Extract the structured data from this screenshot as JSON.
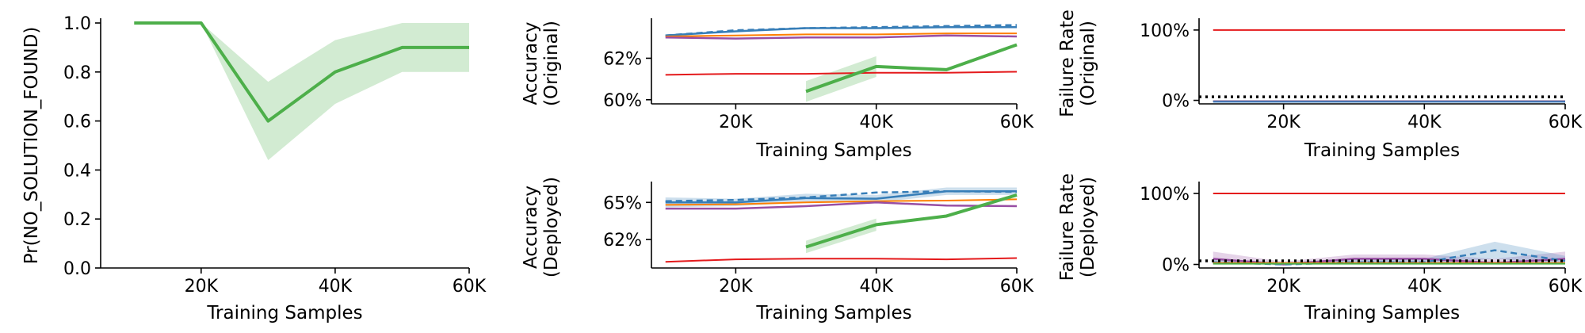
{
  "chart_data": [
    {
      "type": "line",
      "ylabel": "Pr(NO_SOLUTION_FOUND)",
      "xlabel": "Training Samples",
      "xlim": [
        5000,
        60000
      ],
      "ylim": [
        0,
        1.0
      ],
      "xticks": [
        20000,
        40000,
        60000
      ],
      "xtick_labels": [
        "20K",
        "40K",
        "60K"
      ],
      "yticks": [
        0,
        0.2,
        0.4,
        0.6,
        0.8,
        1.0
      ],
      "ytick_labels": [
        "0.0",
        "0.2",
        "0.4",
        "0.6",
        "0.8",
        "1.0"
      ],
      "series": [
        {
          "color": "#4daf4a",
          "width": 4,
          "x": [
            10000,
            20000,
            30000,
            40000,
            50000,
            60000
          ],
          "y": [
            1.0,
            1.0,
            0.6,
            0.8,
            0.9,
            0.9
          ],
          "band_low": [
            1.0,
            1.0,
            0.44,
            0.67,
            0.8,
            0.8
          ],
          "band_high": [
            1.0,
            1.0,
            0.76,
            0.93,
            1.0,
            1.0
          ]
        }
      ]
    },
    {
      "type": "line",
      "ylabel": "Accuracy\n(Original)",
      "xlabel": "Training Samples",
      "xlim": [
        8000,
        60000
      ],
      "ylim": [
        59.8,
        63.7
      ],
      "xticks": [
        20000,
        40000,
        60000
      ],
      "xtick_labels": [
        "20K",
        "40K",
        "60K"
      ],
      "yticks": [
        60,
        62
      ],
      "ytick_labels": [
        "60%",
        "62%"
      ],
      "series": [
        {
          "color": "#377eb8",
          "width": 2.5,
          "dash": "8,5",
          "x": [
            10000,
            20000,
            30000,
            40000,
            50000,
            60000
          ],
          "y": [
            63.1,
            63.35,
            63.45,
            63.5,
            63.55,
            63.6
          ]
        },
        {
          "color": "#377eb8",
          "width": 2.5,
          "x": [
            10000,
            20000,
            30000,
            40000,
            50000,
            60000
          ],
          "y": [
            63.1,
            63.3,
            63.45,
            63.45,
            63.5,
            63.5
          ]
        },
        {
          "color": "#ff7f00",
          "width": 2,
          "x": [
            10000,
            20000,
            30000,
            40000,
            50000,
            60000
          ],
          "y": [
            63.05,
            63.1,
            63.15,
            63.15,
            63.2,
            63.2
          ]
        },
        {
          "color": "#984ea3",
          "width": 2.5,
          "x": [
            10000,
            20000,
            30000,
            40000,
            50000,
            60000
          ],
          "y": [
            63.0,
            62.95,
            63.0,
            63.0,
            63.1,
            63.05
          ]
        },
        {
          "color": "#e41a1c",
          "width": 2,
          "x": [
            10000,
            20000,
            30000,
            40000,
            50000,
            60000
          ],
          "y": [
            61.2,
            61.25,
            61.25,
            61.3,
            61.3,
            61.35
          ]
        },
        {
          "color": "#4daf4a",
          "width": 4,
          "x": [
            30000,
            40000,
            50000,
            60000
          ],
          "y": [
            60.4,
            61.6,
            61.45,
            62.65
          ],
          "band_x": [
            30000,
            40000
          ],
          "band_low": [
            59.9,
            61.1
          ],
          "band_high": [
            60.9,
            62.1
          ]
        }
      ]
    },
    {
      "type": "line",
      "ylabel": "Accuracy\n(Deployed)",
      "xlabel": "Training Samples",
      "xlim": [
        8000,
        60000
      ],
      "ylim": [
        59.7,
        66.3
      ],
      "xticks": [
        20000,
        40000,
        60000
      ],
      "xtick_labels": [
        "20K",
        "40K",
        "60K"
      ],
      "yticks": [
        62,
        65
      ],
      "ytick_labels": [
        "62%",
        "65%"
      ],
      "series": [
        {
          "color": "#377eb8",
          "width": 2.5,
          "dash": "8,5",
          "x": [
            10000,
            20000,
            30000,
            40000,
            50000,
            60000
          ],
          "y": [
            65.1,
            65.2,
            65.4,
            65.8,
            65.9,
            65.85
          ]
        },
        {
          "color": "#377eb8",
          "width": 2.5,
          "x": [
            10000,
            20000,
            30000,
            40000,
            50000,
            60000
          ],
          "y": [
            65.0,
            65.0,
            65.35,
            65.3,
            65.9,
            65.9
          ],
          "band_low": [
            64.6,
            64.7,
            65.0,
            65.0,
            65.6,
            65.6
          ],
          "band_high": [
            65.4,
            65.3,
            65.7,
            65.6,
            66.2,
            66.2
          ]
        },
        {
          "color": "#ff7f00",
          "width": 2,
          "x": [
            10000,
            20000,
            30000,
            40000,
            50000,
            60000
          ],
          "y": [
            64.8,
            64.85,
            65.0,
            65.1,
            65.15,
            65.25
          ]
        },
        {
          "color": "#984ea3",
          "width": 2.5,
          "x": [
            10000,
            20000,
            30000,
            40000,
            50000,
            60000
          ],
          "y": [
            64.5,
            64.5,
            64.7,
            65.0,
            64.75,
            64.7
          ]
        },
        {
          "color": "#e41a1c",
          "width": 2,
          "x": [
            10000,
            20000,
            30000,
            40000,
            50000,
            60000
          ],
          "y": [
            60.2,
            60.4,
            60.45,
            60.45,
            60.4,
            60.5
          ]
        },
        {
          "color": "#4daf4a",
          "width": 4,
          "x": [
            30000,
            40000,
            50000,
            60000
          ],
          "y": [
            61.4,
            63.2,
            63.9,
            65.6
          ],
          "band_x": [
            30000,
            40000
          ],
          "band_low": [
            60.9,
            62.7
          ],
          "band_high": [
            61.9,
            63.7
          ]
        }
      ]
    },
    {
      "type": "line",
      "ylabel": "Failure Rate\n(Original)",
      "xlabel": "Training Samples",
      "xlim": [
        8000,
        60000
      ],
      "ylim": [
        -5,
        110
      ],
      "xticks": [
        20000,
        40000,
        60000
      ],
      "xtick_labels": [
        "20K",
        "40K",
        "60K"
      ],
      "yticks": [
        0,
        100
      ],
      "ytick_labels": [
        "0%",
        "100%"
      ],
      "series": [
        {
          "color": "#e41a1c",
          "width": 2,
          "x": [
            10000,
            60000
          ],
          "y": [
            100,
            100
          ]
        },
        {
          "color": "#4daf4a",
          "width": 2,
          "x": [
            10000,
            60000
          ],
          "y": [
            -1,
            -1
          ]
        },
        {
          "color": "#984ea3",
          "width": 2.5,
          "x": [
            10000,
            60000
          ],
          "y": [
            -1.5,
            -1.5
          ]
        },
        {
          "color": "#377eb8",
          "width": 2,
          "x": [
            10000,
            60000
          ],
          "y": [
            -2,
            -2
          ]
        },
        {
          "color": "#000000",
          "width": 3.5,
          "dash": "3,5",
          "x": [
            8000,
            60000
          ],
          "y": [
            5,
            5
          ]
        }
      ]
    },
    {
      "type": "line",
      "ylabel": "Failure Rate\n(Deployed)",
      "xlabel": "Training Samples",
      "xlim": [
        8000,
        60000
      ],
      "ylim": [
        -5,
        110
      ],
      "xticks": [
        20000,
        40000,
        60000
      ],
      "xtick_labels": [
        "20K",
        "40K",
        "60K"
      ],
      "yticks": [
        0,
        100
      ],
      "ytick_labels": [
        "0%",
        "100%"
      ],
      "series": [
        {
          "color": "#e41a1c",
          "width": 2,
          "x": [
            10000,
            60000
          ],
          "y": [
            100,
            100
          ]
        },
        {
          "color": "#984ea3",
          "width": 2.5,
          "x": [
            10000,
            20000,
            30000,
            40000,
            50000,
            60000
          ],
          "y": [
            8,
            0,
            8,
            8,
            2,
            8
          ],
          "band_low": [
            0,
            0,
            3,
            3,
            0,
            0
          ],
          "band_high": [
            18,
            4,
            14,
            14,
            8,
            18
          ]
        },
        {
          "color": "#377eb8",
          "width": 2.5,
          "dash": "8,5",
          "x": [
            10000,
            20000,
            30000,
            40000,
            50000,
            60000
          ],
          "y": [
            3,
            0,
            3,
            3,
            20,
            5
          ],
          "band_low": [
            0,
            0,
            0,
            0,
            8,
            0
          ],
          "band_high": [
            8,
            3,
            8,
            8,
            32,
            12
          ]
        },
        {
          "color": "#ff7f00",
          "width": 2,
          "x": [
            10000,
            60000
          ],
          "y": [
            2,
            2
          ]
        },
        {
          "color": "#4daf4a",
          "width": 2,
          "x": [
            10000,
            60000
          ],
          "y": [
            1,
            1
          ]
        },
        {
          "color": "#000000",
          "width": 3.5,
          "dash": "3,5",
          "x": [
            8000,
            60000
          ],
          "y": [
            5,
            5
          ]
        }
      ]
    }
  ]
}
